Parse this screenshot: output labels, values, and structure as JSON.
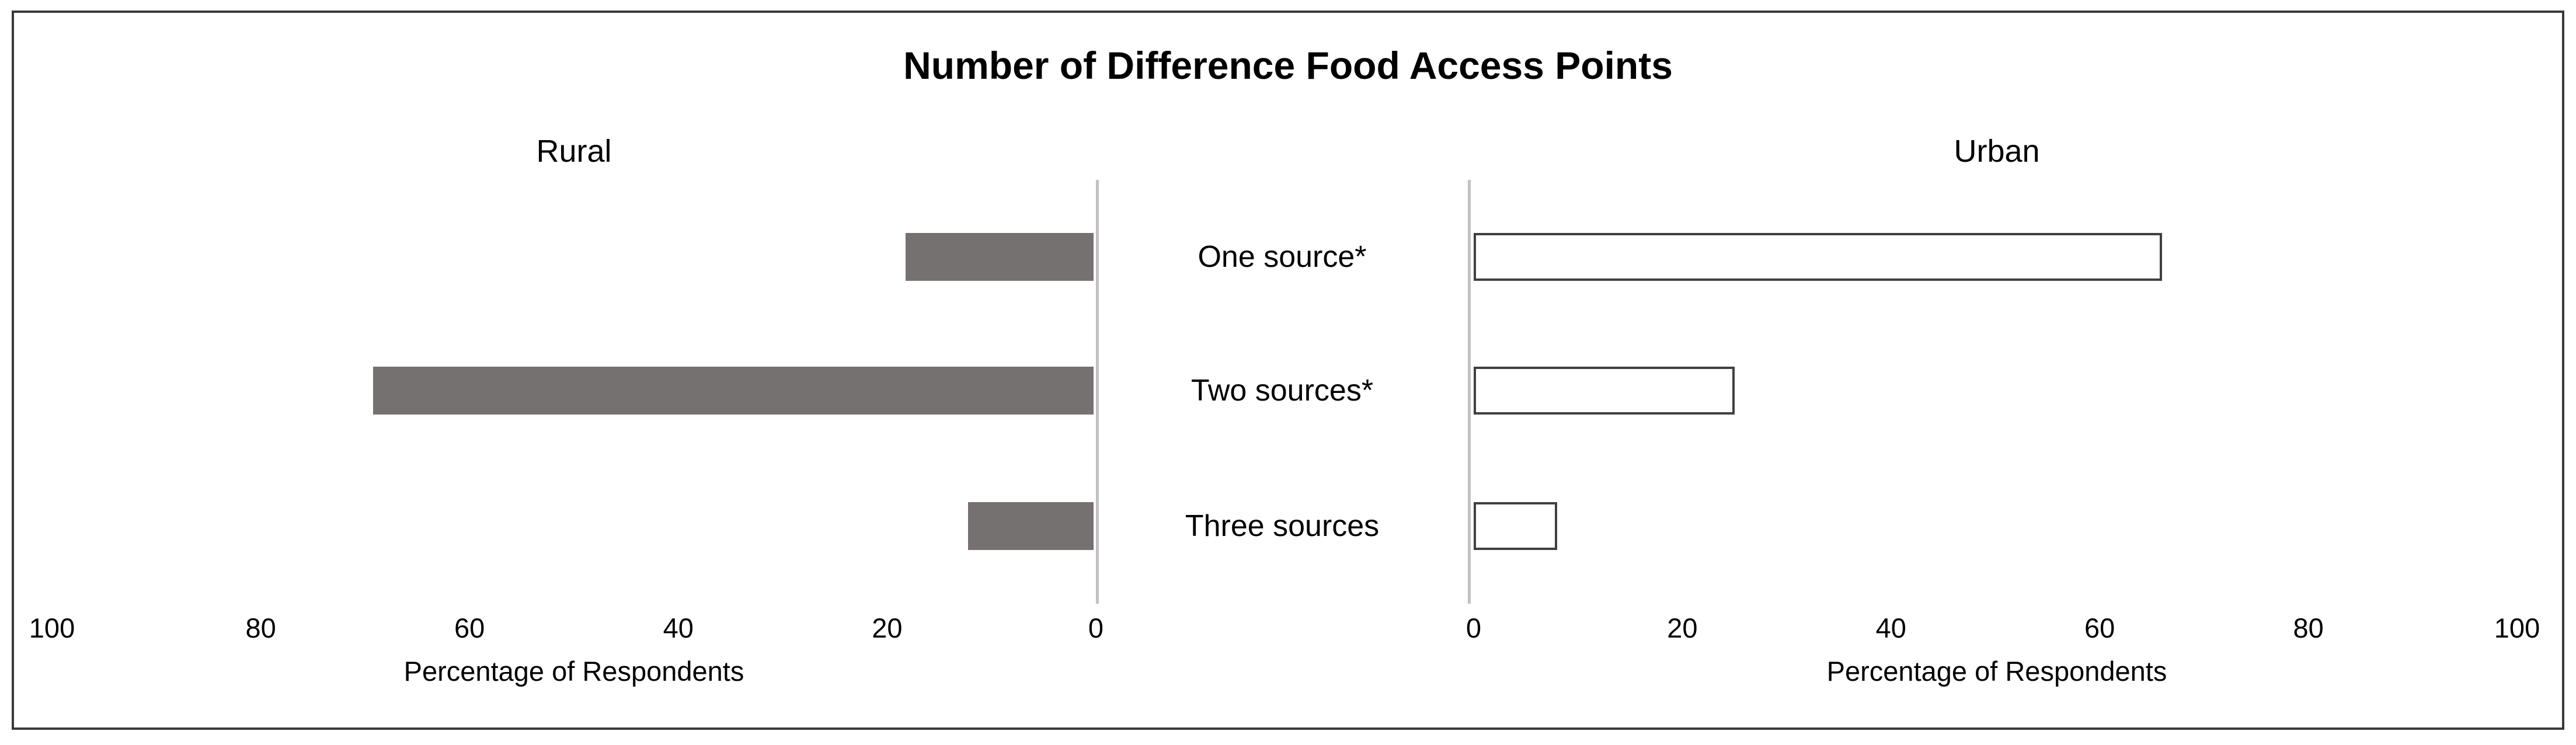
{
  "chart_data": {
    "type": "bar",
    "variant": "diverging-horizontal (butterfly / population-pyramid style)",
    "title": "Number of Difference Food Access Points",
    "categories": [
      "One source*",
      "Two sources*",
      "Three sources"
    ],
    "series": [
      {
        "name": "Rural",
        "side": "left",
        "values": [
          18,
          69,
          12
        ],
        "fill": "#767171",
        "border": "none"
      },
      {
        "name": "Urban",
        "side": "right",
        "values": [
          66,
          25,
          8
        ],
        "fill": "#ffffff",
        "border": "#404040"
      }
    ],
    "xlabel_left": "Percentage of Respondents",
    "xlabel_right": "Percentage of Respondents",
    "xlim": [
      0,
      100
    ],
    "ticks_left": [
      100,
      80,
      60,
      40,
      20,
      0
    ],
    "ticks_right": [
      0,
      20,
      40,
      60,
      80,
      100
    ],
    "grid": false,
    "legend": "none (panel headers act as series labels)"
  },
  "chart": {
    "title": "Number of Difference Food Access Points",
    "left_panel": {
      "header": "Rural",
      "axis_label": "Percentage of Respondents",
      "ticks": [
        "100",
        "80",
        "60",
        "40",
        "20",
        "0"
      ]
    },
    "right_panel": {
      "header": "Urban",
      "axis_label": "Percentage of Respondents",
      "ticks": [
        "0",
        "20",
        "40",
        "60",
        "80",
        "100"
      ]
    },
    "categories": [
      "One source*",
      "Two sources*",
      "Three sources"
    ],
    "colors": {
      "rural_bar_fill": "#767171",
      "urban_bar_fill": "#ffffff",
      "urban_bar_border": "#404040",
      "axis_line": "#c2c2c2",
      "frame_border": "#3a3a3a",
      "text": "#000000"
    }
  }
}
